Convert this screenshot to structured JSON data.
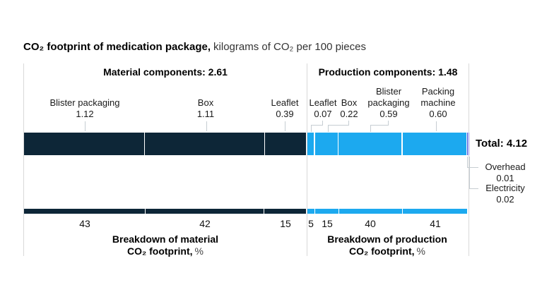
{
  "title": {
    "main": "CO₂ footprint of medication package,",
    "units": "kilograms of CO₂ per 100 pieces"
  },
  "sections": {
    "material_header": "Material components: 2.61",
    "production_header": "Production components: 1.48"
  },
  "component_labels": {
    "material": [
      {
        "label": "Blister packaging",
        "value": "1.12"
      },
      {
        "label": "Box",
        "value": "1.11"
      },
      {
        "label": "Leaflet",
        "value": "0.39"
      }
    ],
    "production": [
      {
        "label": "Leaflet",
        "value": "0.07"
      },
      {
        "label": "Box",
        "value": "0.22"
      },
      {
        "label": "Blister packaging",
        "value": "0.59"
      },
      {
        "label": "Packing machine",
        "value": "0.60"
      }
    ]
  },
  "total_label": "Total: 4.12",
  "right_annotations": {
    "overhead": {
      "label": "Overhead",
      "value": "0.01"
    },
    "electricity": {
      "label": "Electricity",
      "value": "0.02"
    }
  },
  "captions": {
    "material": {
      "line1": "Breakdown of material",
      "line2": "CO₂ footprint,",
      "unit": "%"
    },
    "production": {
      "line1": "Breakdown of production",
      "line2": "CO₂ footprint,",
      "unit": "%"
    }
  },
  "colors": {
    "navy": "#0d2637",
    "cyan": "#1ca9ef",
    "indigo": "#3644db",
    "periwinkle": "#7b85e9",
    "gridline": "#d9d9d9",
    "leader": "#c6cdd2"
  },
  "chart_data": {
    "type": "bar",
    "title": "CO₂ footprint of medication package",
    "units": "kilograms of CO₂ per 100 pieces",
    "total": 4.12,
    "material_total": 2.61,
    "production_total": 1.48,
    "top_bar": {
      "segments": [
        {
          "group": "material",
          "label": "Blister packaging",
          "value": 1.12,
          "color": "#0d2637"
        },
        {
          "group": "material",
          "label": "Box",
          "value": 1.11,
          "color": "#0d2637"
        },
        {
          "group": "material",
          "label": "Leaflet",
          "value": 0.39,
          "color": "#0d2637"
        },
        {
          "group": "production",
          "label": "Leaflet",
          "value": 0.07,
          "color": "#1ca9ef"
        },
        {
          "group": "production",
          "label": "Box",
          "value": 0.22,
          "color": "#1ca9ef"
        },
        {
          "group": "production",
          "label": "Blister packaging",
          "value": 0.59,
          "color": "#1ca9ef"
        },
        {
          "group": "production",
          "label": "Packing machine",
          "value": 0.6,
          "color": "#1ca9ef"
        },
        {
          "group": "other",
          "label": "Overhead",
          "value": 0.01,
          "color": "#3644db"
        },
        {
          "group": "other",
          "label": "Electricity",
          "value": 0.02,
          "color": "#7b85e9"
        }
      ]
    },
    "bottom_bars": {
      "material": {
        "caption": "Breakdown of material CO₂ footprint, %",
        "categories": [
          "Blister packaging",
          "Box",
          "Leaflet"
        ],
        "percents": [
          43,
          42,
          15
        ],
        "color": "#0d2637"
      },
      "production": {
        "caption": "Breakdown of production CO₂ footprint, %",
        "categories": [
          "Leaflet",
          "Box",
          "Blister packaging",
          "Packing machine"
        ],
        "percents": [
          5,
          15,
          40,
          41
        ],
        "color": "#1ca9ef"
      }
    }
  }
}
